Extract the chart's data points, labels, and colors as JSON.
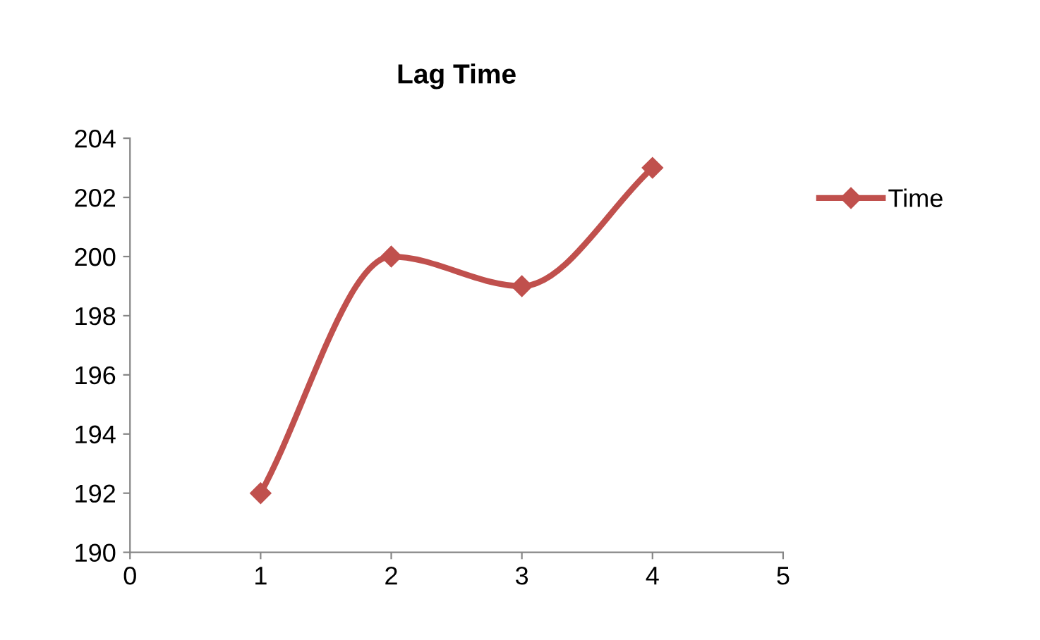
{
  "chart_data": {
    "type": "line",
    "title": "Lag Time",
    "x": [
      1,
      2,
      3,
      4
    ],
    "series": [
      {
        "name": "Time",
        "color": "#c0504d",
        "values": [
          192,
          200,
          199,
          203
        ]
      }
    ],
    "xlim": [
      0,
      5
    ],
    "xticks": [
      0,
      1,
      2,
      3,
      4,
      5
    ],
    "ylim": [
      190,
      204
    ],
    "yticks": [
      190,
      192,
      194,
      196,
      198,
      200,
      202,
      204
    ],
    "grid": false,
    "legend": "right",
    "marker": "diamond",
    "line_style": "solid"
  }
}
